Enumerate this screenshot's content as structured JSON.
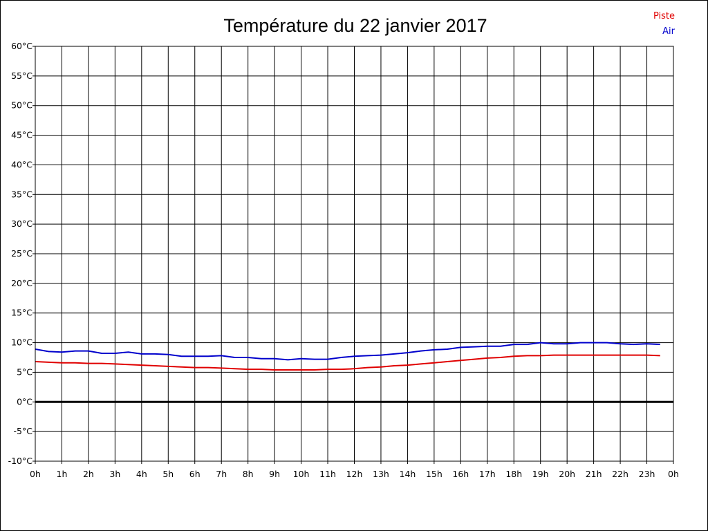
{
  "chart_data": {
    "type": "line",
    "title": "Température du 22 janvier 2017",
    "xlabel": "",
    "ylabel": "",
    "ylim": [
      -10,
      60
    ],
    "xlim": [
      0,
      24
    ],
    "grid": true,
    "legend_position": "top-right",
    "y_ticks": [
      60,
      55,
      50,
      45,
      40,
      35,
      30,
      25,
      20,
      15,
      10,
      5,
      0,
      -5,
      -10
    ],
    "y_tick_labels": [
      "60°C",
      "55°C",
      "50°C",
      "45°C",
      "40°C",
      "35°C",
      "30°C",
      "25°C",
      "20°C",
      "15°C",
      "10°C",
      "5°C",
      "0°C",
      "-5°C",
      "-10°C"
    ],
    "x_ticks": [
      0,
      1,
      2,
      3,
      4,
      5,
      6,
      7,
      8,
      9,
      10,
      11,
      12,
      13,
      14,
      15,
      16,
      17,
      18,
      19,
      20,
      21,
      22,
      23,
      24
    ],
    "x_tick_labels": [
      "0h",
      "1h",
      "2h",
      "3h",
      "4h",
      "5h",
      "6h",
      "7h",
      "8h",
      "9h",
      "10h",
      "11h",
      "12h",
      "13h",
      "14h",
      "15h",
      "16h",
      "17h",
      "18h",
      "19h",
      "20h",
      "21h",
      "22h",
      "23h",
      "0h"
    ],
    "zero_line": 0,
    "series": [
      {
        "name": "Piste",
        "color": "#e00000",
        "x": [
          0,
          0.5,
          1,
          1.5,
          2,
          2.5,
          3,
          3.5,
          4,
          4.5,
          5,
          5.5,
          6,
          6.5,
          7,
          7.5,
          8,
          8.5,
          9,
          9.5,
          10,
          10.5,
          11,
          11.5,
          12,
          12.5,
          13,
          13.5,
          14,
          14.5,
          15,
          15.5,
          16,
          16.5,
          17,
          17.5,
          18,
          18.5,
          19,
          19.5,
          20,
          20.5,
          21,
          21.5,
          22,
          22.5,
          23,
          23.5
        ],
        "values": [
          6.8,
          6.7,
          6.6,
          6.6,
          6.5,
          6.5,
          6.4,
          6.3,
          6.2,
          6.1,
          6.0,
          5.9,
          5.8,
          5.8,
          5.7,
          5.6,
          5.5,
          5.5,
          5.4,
          5.4,
          5.4,
          5.4,
          5.5,
          5.5,
          5.6,
          5.8,
          5.9,
          6.1,
          6.2,
          6.4,
          6.6,
          6.8,
          7.0,
          7.2,
          7.4,
          7.5,
          7.7,
          7.8,
          7.8,
          7.9,
          7.9,
          7.9,
          7.9,
          7.9,
          7.9,
          7.9,
          7.9,
          7.8
        ]
      },
      {
        "name": "Air",
        "color": "#0000cc",
        "x": [
          0,
          0.5,
          1,
          1.5,
          2,
          2.5,
          3,
          3.5,
          4,
          4.5,
          5,
          5.5,
          6,
          6.5,
          7,
          7.5,
          8,
          8.5,
          9,
          9.5,
          10,
          10.5,
          11,
          11.5,
          12,
          12.5,
          13,
          13.5,
          14,
          14.5,
          15,
          15.5,
          16,
          16.5,
          17,
          17.5,
          18,
          18.5,
          19,
          19.5,
          20,
          20.5,
          21,
          21.5,
          22,
          22.5,
          23,
          23.5
        ],
        "values": [
          8.9,
          8.5,
          8.4,
          8.6,
          8.6,
          8.2,
          8.2,
          8.4,
          8.1,
          8.1,
          8.0,
          7.7,
          7.7,
          7.7,
          7.8,
          7.5,
          7.5,
          7.3,
          7.3,
          7.1,
          7.3,
          7.2,
          7.2,
          7.5,
          7.7,
          7.8,
          7.9,
          8.1,
          8.3,
          8.6,
          8.8,
          8.9,
          9.2,
          9.3,
          9.4,
          9.4,
          9.7,
          9.7,
          10.0,
          9.8,
          9.8,
          10.0,
          10.0,
          10.0,
          9.8,
          9.7,
          9.8,
          9.7
        ]
      }
    ]
  }
}
